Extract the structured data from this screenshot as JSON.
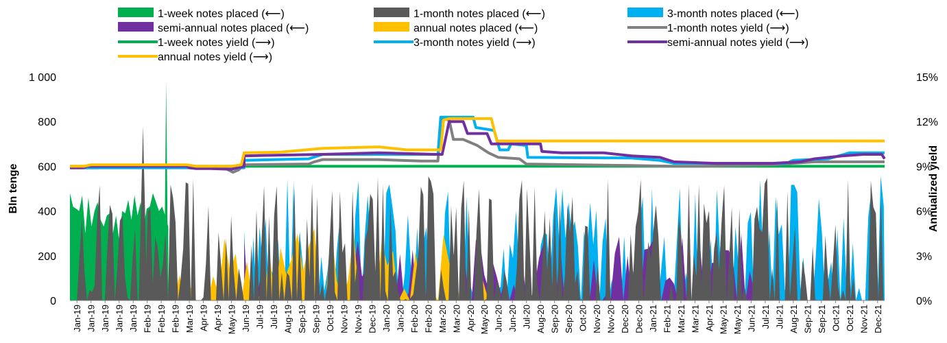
{
  "chart_data": {
    "type": "area+line",
    "title": "",
    "y_left": {
      "label": "Bln tenge",
      "ylim": [
        0,
        1000
      ],
      "ticks": [
        0,
        200,
        400,
        600,
        800,
        1000
      ],
      "tick_labels": [
        "0",
        "200",
        "400",
        "600",
        "800",
        "1 000"
      ]
    },
    "y_right": {
      "label": "Annualized yield",
      "ylim": [
        0,
        15
      ],
      "ticks": [
        0,
        3,
        6,
        9,
        12,
        15
      ],
      "tick_labels": [
        "0%",
        "3%",
        "6%",
        "9%",
        "12%",
        "15%"
      ]
    },
    "x_tick_labels": [
      "Jan-19",
      "Jan-19",
      "Jan-19",
      "Jan-19",
      "Jan-19",
      "Feb-19",
      "Feb-19",
      "Feb-19",
      "Mar-19",
      "Apr-19",
      "Apr-19",
      "May-19",
      "Jun-19",
      "Jul-19",
      "Jul-19",
      "Aug-19",
      "Sep-19",
      "Sep-19",
      "Oct-19",
      "Nov-19",
      "Nov-19",
      "Dec-19",
      "Jan-20",
      "Jan-20",
      "Feb-20",
      "Feb-20",
      "Mar-20",
      "Mar-20",
      "Apr-20",
      "May-20",
      "Jun-20",
      "Jun-20",
      "Jul-20",
      "Aug-20",
      "Sep-20",
      "Sep-20",
      "Oct-20",
      "Nov-20",
      "Nov-20",
      "Dec-20",
      "Dec-20",
      "Jan-21",
      "Feb-21",
      "Mar-21",
      "Mar-21",
      "Apr-21",
      "May-21",
      "May-21",
      "Jun-21",
      "Jul-21",
      "Jul-21",
      "Aug-21",
      "Sep-21",
      "Sep-21",
      "Oct-21",
      "Oct-21",
      "Nov-21",
      "Dec-21"
    ],
    "legend_position": "top",
    "legend": [
      {
        "label": "1-week notes placed (⟵)",
        "kind": "area",
        "color": "#00b050"
      },
      {
        "label": "1-month notes placed (⟵)",
        "kind": "area",
        "color": "#595959"
      },
      {
        "label": " 3-month notes placed (⟵)",
        "kind": "area",
        "color": "#00b0f0"
      },
      {
        "label": "semi-annual notes placed (⟵)",
        "kind": "area",
        "color": "#7030a0"
      },
      {
        "label": "annual notes placed (⟵)",
        "kind": "area",
        "color": "#ffc000"
      },
      {
        "label": "1-month notes yield (⟶)",
        "kind": "line",
        "color": "#808080"
      },
      {
        "label": "1-week notes yield (⟶)",
        "kind": "line",
        "color": "#00b050"
      },
      {
        "label": "3-month notes yield (⟶)",
        "kind": "line",
        "color": "#00b0f0"
      },
      {
        "label": "semi-annual notes yield (⟶)",
        "kind": "line",
        "color": "#7030a0"
      },
      {
        "label": "annual notes yield (⟶)",
        "kind": "line",
        "color": "#ffc000"
      }
    ],
    "series": [
      {
        "name": "1-week notes yield (⟶)",
        "axis": "right",
        "color": "#00b050",
        "points": [
          [
            0,
            9.0
          ],
          [
            58,
            9.0
          ]
        ]
      },
      {
        "name": "1-month notes yield (⟶)",
        "axis": "right",
        "color": "#808080",
        "points": [
          [
            0,
            8.9
          ],
          [
            2,
            8.9
          ],
          [
            2.3,
            9.0
          ],
          [
            6,
            9.0
          ],
          [
            8.4,
            9.0
          ],
          [
            9,
            8.95
          ],
          [
            11,
            8.9
          ],
          [
            11.6,
            8.6
          ],
          [
            12,
            8.75
          ],
          [
            12.4,
            9.1
          ],
          [
            17,
            9.15
          ],
          [
            17.4,
            9.3
          ],
          [
            18,
            9.45
          ],
          [
            22,
            9.45
          ],
          [
            25,
            9.35
          ],
          [
            26.2,
            9.35
          ],
          [
            26.4,
            12.2
          ],
          [
            27,
            12.1
          ],
          [
            27.3,
            10.8
          ],
          [
            28,
            10.8
          ],
          [
            29,
            10.4
          ],
          [
            29.8,
            9.9
          ],
          [
            30.5,
            9.6
          ],
          [
            32,
            9.5
          ],
          [
            32.5,
            9.15
          ],
          [
            40,
            9.05
          ],
          [
            43,
            9.0
          ],
          [
            45,
            9.0
          ],
          [
            50,
            9.1
          ],
          [
            53,
            9.3
          ],
          [
            58,
            9.3
          ]
        ]
      },
      {
        "name": "3-month notes yield (⟶)",
        "axis": "right",
        "color": "#00b0f0",
        "points": [
          [
            0,
            8.9
          ],
          [
            12.4,
            8.9
          ],
          [
            12.4,
            9.4
          ],
          [
            17,
            9.5
          ],
          [
            18,
            9.8
          ],
          [
            26,
            9.8
          ],
          [
            26.2,
            9.8
          ],
          [
            26.4,
            12.3
          ],
          [
            28.7,
            12.3
          ],
          [
            28.9,
            11.6
          ],
          [
            30.2,
            11.4
          ],
          [
            30.6,
            10.1
          ],
          [
            31.2,
            10.1
          ],
          [
            31.4,
            10.5
          ],
          [
            32.5,
            10.4
          ],
          [
            32.6,
            9.6
          ],
          [
            40,
            9.55
          ],
          [
            42,
            9.4
          ],
          [
            43,
            9.2
          ],
          [
            51,
            9.2
          ],
          [
            51.5,
            9.4
          ],
          [
            54,
            9.5
          ],
          [
            55.5,
            9.9
          ],
          [
            58,
            9.9
          ]
        ]
      },
      {
        "name": "semi-annual notes yield (⟶)",
        "axis": "right",
        "color": "#7030a0",
        "points": [
          [
            0,
            8.9
          ],
          [
            1,
            8.9
          ],
          [
            1.2,
            9.0
          ],
          [
            8.3,
            9.0
          ],
          [
            8.5,
            8.9
          ],
          [
            9,
            8.85
          ],
          [
            10,
            8.85
          ],
          [
            11.5,
            8.8
          ],
          [
            12.4,
            9.0
          ],
          [
            12.4,
            9.7
          ],
          [
            15,
            9.75
          ],
          [
            18,
            9.8
          ],
          [
            22,
            9.9
          ],
          [
            26,
            9.8
          ],
          [
            26.5,
            9.8
          ],
          [
            27,
            12.0
          ],
          [
            28,
            12.0
          ],
          [
            28.3,
            11.2
          ],
          [
            29.7,
            11.2
          ],
          [
            30,
            10.5
          ],
          [
            31.5,
            10.5
          ],
          [
            33.5,
            10.5
          ],
          [
            33.6,
            10.0
          ],
          [
            35,
            9.9
          ],
          [
            38,
            9.9
          ],
          [
            40,
            9.7
          ],
          [
            42,
            9.6
          ],
          [
            43,
            9.3
          ],
          [
            46,
            9.2
          ],
          [
            50,
            9.2
          ],
          [
            52,
            9.3
          ],
          [
            53,
            9.5
          ],
          [
            55,
            9.7
          ],
          [
            56.5,
            9.8
          ],
          [
            57.8,
            9.8
          ],
          [
            58,
            9.5
          ]
        ]
      },
      {
        "name": "annual notes yield (⟶)",
        "axis": "right",
        "color": "#ffc000",
        "points": [
          [
            0,
            9.0
          ],
          [
            1,
            9.0
          ],
          [
            1.5,
            9.1
          ],
          [
            8.3,
            9.1
          ],
          [
            9,
            9.0
          ],
          [
            11.5,
            9.0
          ],
          [
            12.2,
            9.1
          ],
          [
            12.4,
            9.9
          ],
          [
            15,
            9.95
          ],
          [
            18,
            10.2
          ],
          [
            22,
            10.3
          ],
          [
            24,
            10.1
          ],
          [
            26.4,
            10.1
          ],
          [
            26.6,
            12.1
          ],
          [
            27,
            12.2
          ],
          [
            30,
            12.2
          ],
          [
            30.4,
            10.7
          ],
          [
            31.5,
            10.7
          ],
          [
            58,
            10.7
          ]
        ]
      }
    ],
    "placements_note": "Placements are shown as dense jagged area series (left axis, Bln tenge)"
  }
}
